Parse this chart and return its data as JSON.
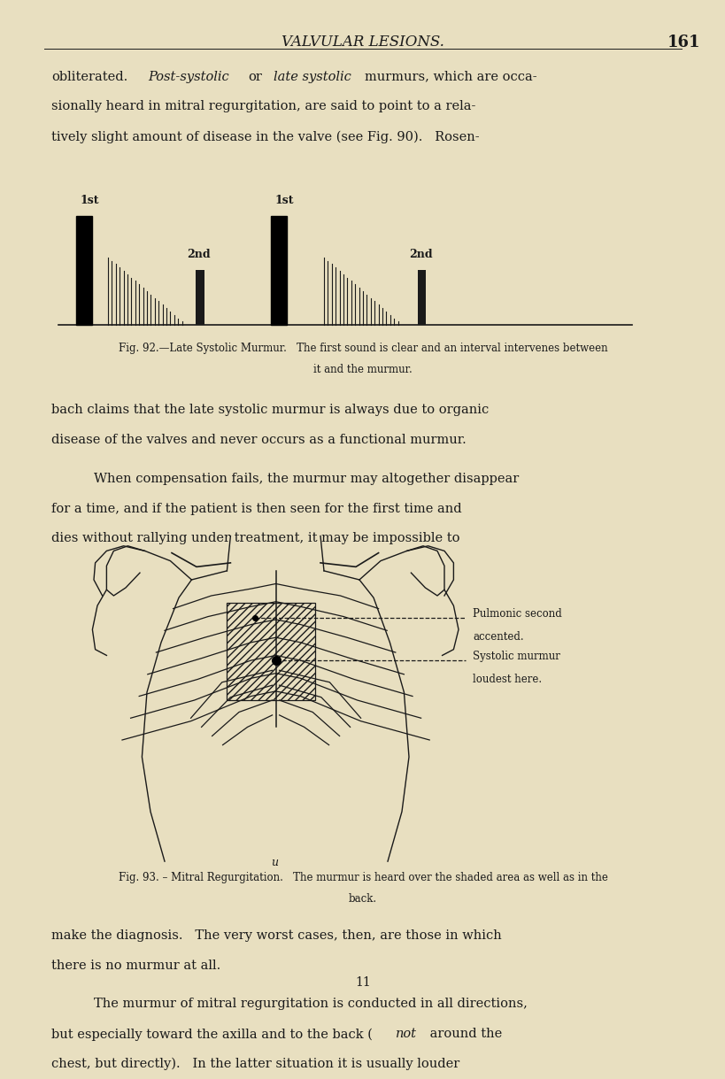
{
  "bg_color": "#e8dfc0",
  "page_width": 8.0,
  "page_height": 11.88,
  "header_title": "VALVULAR LESIONS.",
  "header_page": "161",
  "fig92_caption_line1": "Fig. 92.—Late Systolic Murmur.   The first sound is clear and an interval intervenes between",
  "fig92_caption_line2": "it and the murmur.",
  "para2_line1": "bach claims that the late systolic murmur is always due to organic",
  "para2_line2": "disease of the valves and never occurs as a functional murmur.",
  "para3_line1": "When compensation fails, the murmur may altogether disappear",
  "para3_line2": "for a time, and if the patient is then seen for the first time and",
  "para3_line3": "dies without rallying under treatment, it may be impossible to",
  "annotation1_line1": "Pulmonic second",
  "annotation1_line2": "accented.",
  "annotation2_line1": "Systolic murmur",
  "annotation2_line2": "loudest here.",
  "fig93_caption_line1": "Fig. 93. – Mitral Regurgitation.   The murmur is heard over the shaded area as well as in the",
  "fig93_caption_line2": "back.",
  "para4_line1": "make the diagnosis.   The very worst cases, then, are those in which",
  "para4_line2": "there is no murmur at all.",
  "para5_line1": "The murmur of mitral regurgitation is conducted in all directions,",
  "para5_line2": "but especially toward the axilla and to the back (",
  "para5_italic": "not",
  "para5_line2b": " around the",
  "para5_line3": "chest, but directly).   In the latter situation it is usually louder",
  "page_num_bottom": "11",
  "text_color": "#1a1a1a"
}
